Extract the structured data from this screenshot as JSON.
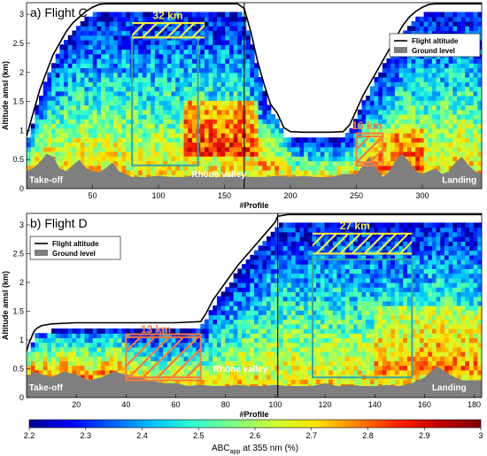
{
  "chart_data": [
    {
      "type": "heatmap",
      "title": "a) Flight C",
      "xlabel": "#Profile",
      "ylabel": "Altitude amsl (km)",
      "xlim": [
        0,
        345
      ],
      "ylim": [
        0,
        3.2
      ],
      "xticks": [
        50,
        100,
        150,
        200,
        250,
        300
      ],
      "yticks": [
        0,
        0.5,
        1,
        1.5,
        2,
        2.5,
        3
      ],
      "legend_entries": [
        "Flight altitude",
        "Ground level"
      ],
      "legend_position": "top-right",
      "flight_altitude": {
        "x": [
          0,
          5,
          10,
          15,
          20,
          25,
          30,
          35,
          40,
          45,
          50,
          55,
          60,
          70,
          80,
          100,
          120,
          140,
          160,
          165,
          170,
          175,
          180,
          185,
          190,
          195,
          200,
          210,
          230,
          240,
          245,
          250,
          255,
          260,
          265,
          270,
          275,
          280,
          285,
          290,
          295,
          300,
          305,
          310,
          320,
          330,
          340,
          345
        ],
        "y": [
          0.9,
          1.3,
          1.7,
          2.0,
          2.3,
          2.5,
          2.7,
          2.85,
          2.95,
          3.05,
          3.12,
          3.17,
          3.18,
          3.18,
          3.18,
          3.18,
          3.18,
          3.18,
          3.18,
          3.1,
          2.7,
          2.2,
          1.8,
          1.45,
          1.3,
          1.05,
          0.98,
          0.97,
          0.97,
          0.98,
          1.1,
          1.35,
          1.6,
          1.8,
          2.0,
          2.2,
          2.4,
          2.6,
          2.8,
          2.95,
          3.05,
          3.12,
          3.17,
          3.18,
          3.18,
          3.18,
          3.18,
          3.18
        ]
      },
      "ground_level": {
        "x": [
          0,
          5,
          10,
          15,
          20,
          25,
          30,
          35,
          40,
          45,
          50,
          55,
          60,
          65,
          70,
          75,
          80,
          90,
          100,
          110,
          120,
          130,
          140,
          150,
          160,
          170,
          180,
          190,
          200,
          210,
          220,
          230,
          240,
          250,
          255,
          260,
          265,
          270,
          275,
          280,
          285,
          290,
          295,
          300,
          305,
          310,
          315,
          320,
          325,
          330,
          335,
          340,
          345
        ],
        "y": [
          0.3,
          0.35,
          0.45,
          0.6,
          0.55,
          0.35,
          0.3,
          0.4,
          0.5,
          0.35,
          0.3,
          0.28,
          0.35,
          0.45,
          0.3,
          0.25,
          0.2,
          0.2,
          0.22,
          0.2,
          0.2,
          0.25,
          0.2,
          0.2,
          0.22,
          0.2,
          0.2,
          0.22,
          0.2,
          0.22,
          0.2,
          0.2,
          0.25,
          0.25,
          0.4,
          0.55,
          0.35,
          0.2,
          0.3,
          0.5,
          0.6,
          0.45,
          0.3,
          0.25,
          0.3,
          0.35,
          0.25,
          0.3,
          0.45,
          0.55,
          0.4,
          0.3,
          0.25
        ]
      },
      "vertical_line_x": 165,
      "boxes": [
        {
          "x": [
            80,
            130
          ],
          "y": [
            0.4,
            2.6
          ],
          "color": "#3aa6a6"
        },
        {
          "x": [
            250,
            270
          ],
          "y": [
            0.4,
            0.95
          ],
          "color": "#ff7a3c"
        }
      ],
      "hatched_zones": [
        {
          "x": [
            80,
            135
          ],
          "y": [
            2.6,
            2.85
          ],
          "color": "#f2f23a"
        },
        {
          "x": [
            250,
            270
          ],
          "y": [
            0.45,
            0.9
          ],
          "color": "#ff7a3c"
        }
      ],
      "annotations": [
        {
          "text": "32 km",
          "x": 107,
          "y": 2.92,
          "color": "#f2f23a"
        },
        {
          "text": "16 km",
          "x": 258,
          "y": 1.02,
          "color": "#ff7a3c"
        },
        {
          "text": "Take-off",
          "x": 2,
          "y": 0.1,
          "color": "#ffffff"
        },
        {
          "text": "Rhône valley",
          "x": 125,
          "y": 0.2,
          "color": "#ffffff"
        },
        {
          "text": "Landing",
          "x": 315,
          "y": 0.1,
          "color": "#ffffff"
        }
      ]
    },
    {
      "type": "heatmap",
      "title": "b) Flight D",
      "xlabel": "#Profile",
      "ylabel": "Altitude amsl (km)",
      "xlim": [
        0,
        183
      ],
      "ylim": [
        0,
        3.2
      ],
      "xticks": [
        20,
        40,
        60,
        80,
        100,
        120,
        140,
        160,
        180
      ],
      "yticks": [
        0,
        0.5,
        1,
        1.5,
        2,
        2.5,
        3
      ],
      "legend_entries": [
        "Flight altitude",
        "Ground level"
      ],
      "legend_position": "top-left",
      "flight_altitude": {
        "x": [
          0,
          1,
          2,
          3,
          4,
          6,
          10,
          20,
          30,
          40,
          50,
          60,
          70,
          72,
          75,
          80,
          85,
          90,
          95,
          100,
          101,
          105,
          110,
          120,
          140,
          160,
          180,
          183
        ],
        "y": [
          0.8,
          0.95,
          1.05,
          1.15,
          1.2,
          1.25,
          1.28,
          1.3,
          1.3,
          1.3,
          1.3,
          1.3,
          1.32,
          1.45,
          1.7,
          2.0,
          2.3,
          2.55,
          2.8,
          3.05,
          3.15,
          3.18,
          3.18,
          3.18,
          3.18,
          3.18,
          3.18,
          3.18
        ]
      },
      "ground_level": {
        "x": [
          0,
          3,
          6,
          10,
          15,
          20,
          25,
          30,
          35,
          40,
          45,
          50,
          55,
          60,
          65,
          70,
          75,
          80,
          85,
          90,
          95,
          100,
          105,
          110,
          115,
          120,
          125,
          130,
          135,
          140,
          145,
          150,
          155,
          160,
          165,
          170,
          175,
          180,
          183
        ],
        "y": [
          0.35,
          0.45,
          0.4,
          0.35,
          0.45,
          0.4,
          0.3,
          0.35,
          0.45,
          0.4,
          0.35,
          0.3,
          0.25,
          0.25,
          0.2,
          0.22,
          0.2,
          0.2,
          0.22,
          0.2,
          0.2,
          0.22,
          0.2,
          0.2,
          0.2,
          0.25,
          0.2,
          0.22,
          0.2,
          0.2,
          0.22,
          0.2,
          0.25,
          0.35,
          0.55,
          0.4,
          0.3,
          0.3,
          0.3
        ]
      },
      "vertical_line_x": 101,
      "boxes": [
        {
          "x": [
            115,
            155
          ],
          "y": [
            0.35,
            2.4
          ],
          "color": "#3aa6a6"
        },
        {
          "x": [
            40,
            70
          ],
          "y": [
            0.3,
            1.1
          ],
          "color": "#ff7a3c"
        }
      ],
      "hatched_zones": [
        {
          "x": [
            115,
            155
          ],
          "y": [
            2.5,
            2.85
          ],
          "color": "#f2f23a"
        },
        {
          "x": [
            40,
            70
          ],
          "y": [
            0.35,
            1.05
          ],
          "color": "#ff7a3c"
        }
      ],
      "annotations": [
        {
          "text": "27 km",
          "x": 132,
          "y": 2.92,
          "color": "#f2f23a"
        },
        {
          "text": "13 km",
          "x": 52,
          "y": 1.12,
          "color": "#ff7a3c"
        },
        {
          "text": "Take-off",
          "x": 1,
          "y": 0.12,
          "color": "#ffffff"
        },
        {
          "text": "Rhône valley",
          "x": 75,
          "y": 0.45,
          "color": "#ffffff"
        },
        {
          "text": "Landing",
          "x": 163,
          "y": 0.12,
          "color": "#ffffff"
        }
      ]
    }
  ],
  "colorbar": {
    "label_main": "ABC",
    "label_sub": "app",
    "label_rest": "at 355 nm (%)",
    "range": [
      2.2,
      3
    ],
    "ticks": [
      "2.2",
      "2.3",
      "2.4",
      "2.5",
      "2.6",
      "2.7",
      "2.8",
      "2.9",
      "3"
    ],
    "colors": [
      "#00008f",
      "#0000ff",
      "#0060ff",
      "#00c0ff",
      "#30ffd0",
      "#80ff80",
      "#d0ff30",
      "#ffe000",
      "#ff8000",
      "#ff2000",
      "#c00000",
      "#800000"
    ]
  }
}
